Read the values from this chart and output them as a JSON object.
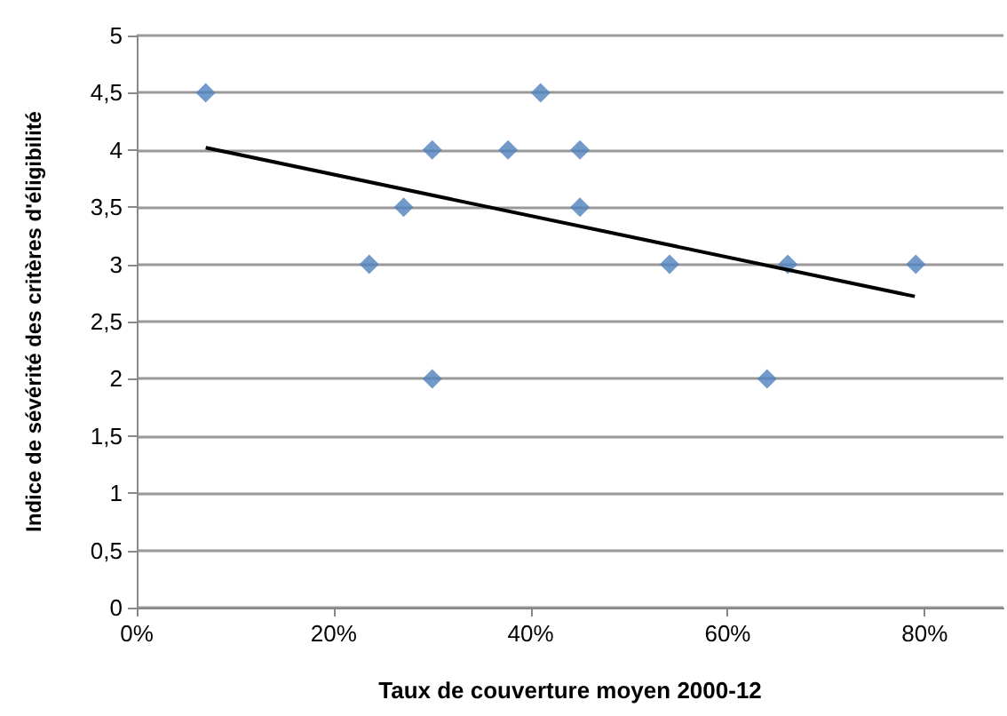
{
  "chart_data": {
    "type": "scatter",
    "xlabel": "Taux de couverture moyen 2000-12",
    "ylabel": "Indice de sévérité des critères d'éligibilité",
    "xlim": [
      0,
      88
    ],
    "xticks": [
      {
        "value": 0,
        "label": "0%"
      },
      {
        "value": 20,
        "label": "20%"
      },
      {
        "value": 40,
        "label": "40%"
      },
      {
        "value": 60,
        "label": "60%"
      },
      {
        "value": 80,
        "label": "80%"
      }
    ],
    "ylim": [
      0,
      5
    ],
    "yticks": [
      0,
      {
        "value": 0.5,
        "label": "0,5"
      },
      1,
      {
        "value": 1.5,
        "label": "1,5"
      },
      2,
      {
        "value": 2.5,
        "label": "2,5"
      },
      3,
      {
        "value": 3.5,
        "label": "3,5"
      },
      4,
      {
        "value": 4.5,
        "label": "4,5"
      },
      5
    ],
    "grid": "y",
    "marker": "diamond",
    "series": [
      {
        "color": "#4f81bd",
        "x": [
          7,
          41,
          30,
          37.7,
          45,
          27.1,
          45,
          23.6,
          54.1,
          66.1,
          79.1,
          30,
          64
        ],
        "values": [
          4.5,
          4.5,
          4,
          4,
          4,
          3.5,
          3.5,
          3,
          3,
          3,
          3,
          2,
          2
        ]
      },
      {
        "type": "line",
        "color": "#000000",
        "marker": "none",
        "line_style": "solid",
        "x": [
          7,
          79
        ],
        "values": [
          4.02,
          2.72
        ]
      }
    ]
  }
}
